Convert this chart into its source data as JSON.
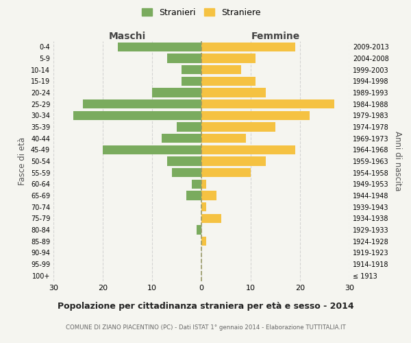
{
  "age_groups": [
    "100+",
    "95-99",
    "90-94",
    "85-89",
    "80-84",
    "75-79",
    "70-74",
    "65-69",
    "60-64",
    "55-59",
    "50-54",
    "45-49",
    "40-44",
    "35-39",
    "30-34",
    "25-29",
    "20-24",
    "15-19",
    "10-14",
    "5-9",
    "0-4"
  ],
  "birth_years": [
    "≤ 1913",
    "1914-1918",
    "1919-1923",
    "1924-1928",
    "1929-1933",
    "1934-1938",
    "1939-1943",
    "1944-1948",
    "1949-1953",
    "1954-1958",
    "1959-1963",
    "1964-1968",
    "1969-1973",
    "1974-1978",
    "1979-1983",
    "1984-1988",
    "1989-1993",
    "1994-1998",
    "1999-2003",
    "2004-2008",
    "2009-2013"
  ],
  "maschi": [
    0,
    0,
    0,
    0,
    1,
    0,
    0,
    3,
    2,
    6,
    7,
    20,
    8,
    5,
    26,
    24,
    10,
    4,
    4,
    7,
    17
  ],
  "femmine": [
    0,
    0,
    0,
    1,
    0,
    4,
    1,
    3,
    1,
    10,
    13,
    19,
    9,
    15,
    22,
    27,
    13,
    11,
    8,
    11,
    19
  ],
  "color_maschi": "#7aab5e",
  "color_femmine": "#f5c242",
  "xlim": 30,
  "title": "Popolazione per cittadinanza straniera per età e sesso - 2014",
  "subtitle": "COMUNE DI ZIANO PIACENTINO (PC) - Dati ISTAT 1° gennaio 2014 - Elaborazione TUTTITALIA.IT",
  "ylabel_left": "Fasce di età",
  "ylabel_right": "Anni di nascita",
  "xlabel_maschi": "Maschi",
  "xlabel_femmine": "Femmine",
  "legend_maschi": "Stranieri",
  "legend_femmine": "Straniere",
  "bg_color": "#f5f5f0",
  "bar_height": 0.8
}
